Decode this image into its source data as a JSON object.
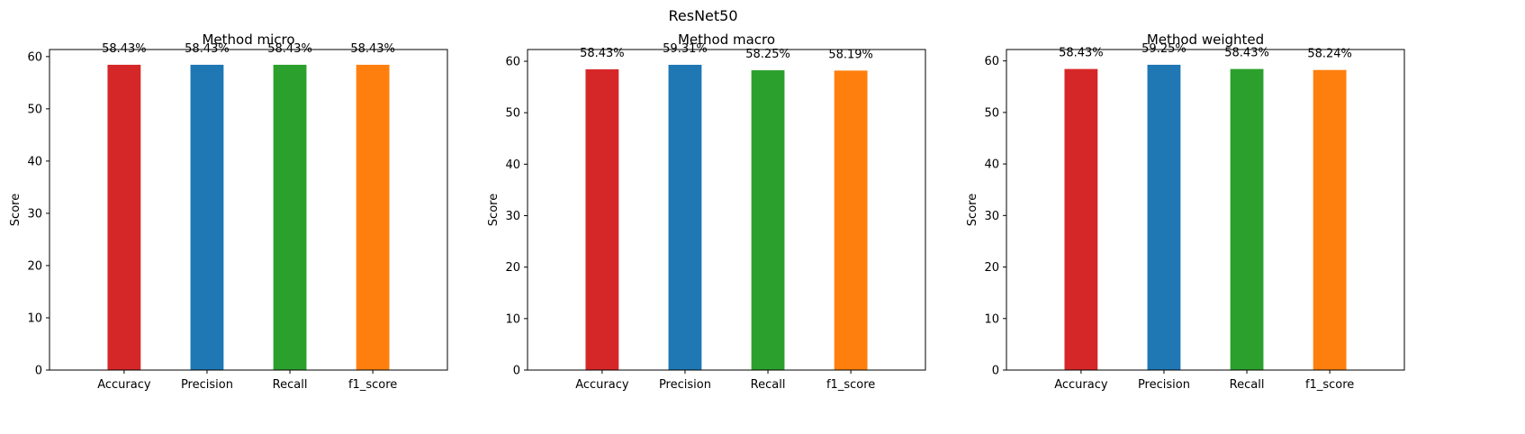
{
  "figure": {
    "suptitle": "ResNet50"
  },
  "chart_data": [
    {
      "type": "bar",
      "title": "Method micro",
      "xlabel": "",
      "ylabel": "Score",
      "ylim": [
        0,
        61.35
      ],
      "yticks": [
        0,
        10,
        20,
        30,
        40,
        50,
        60
      ],
      "grid": false,
      "categories": [
        "Accuracy",
        "Precision",
        "Recall",
        "f1_score"
      ],
      "values": [
        58.43,
        58.43,
        58.43,
        58.43
      ],
      "labels": [
        "58.43%",
        "58.43%",
        "58.43%",
        "58.43%"
      ],
      "colors": [
        "#d62728",
        "#1f77b4",
        "#2ca02c",
        "#ff7f0e"
      ]
    },
    {
      "type": "bar",
      "title": "Method macro",
      "xlabel": "",
      "ylabel": "Score",
      "ylim": [
        0,
        62.28
      ],
      "yticks": [
        0,
        10,
        20,
        30,
        40,
        50,
        60
      ],
      "grid": false,
      "categories": [
        "Accuracy",
        "Precision",
        "Recall",
        "f1_score"
      ],
      "values": [
        58.43,
        59.31,
        58.25,
        58.19
      ],
      "labels": [
        "58.43%",
        "59.31%",
        "58.25%",
        "58.19%"
      ],
      "colors": [
        "#d62728",
        "#1f77b4",
        "#2ca02c",
        "#ff7f0e"
      ]
    },
    {
      "type": "bar",
      "title": "Method weighted",
      "xlabel": "",
      "ylabel": "Score",
      "ylim": [
        0,
        62.21
      ],
      "yticks": [
        0,
        10,
        20,
        30,
        40,
        50,
        60
      ],
      "grid": false,
      "categories": [
        "Accuracy",
        "Precision",
        "Recall",
        "f1_score"
      ],
      "values": [
        58.43,
        59.25,
        58.43,
        58.24
      ],
      "labels": [
        "58.43%",
        "59.25%",
        "58.43%",
        "58.24%"
      ],
      "colors": [
        "#d62728",
        "#1f77b4",
        "#2ca02c",
        "#ff7f0e"
      ]
    }
  ]
}
